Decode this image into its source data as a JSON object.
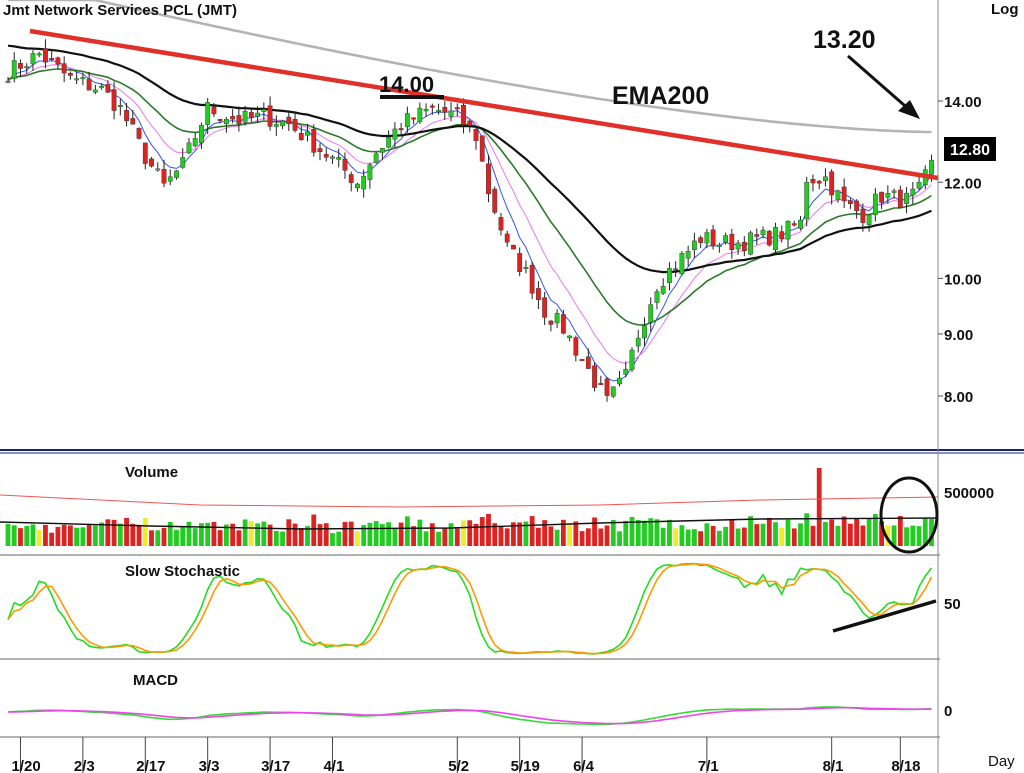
{
  "chart_data": {
    "type": "candlestick",
    "title": "Jmt  Network  Services  PCL  (JMT)",
    "scale_label": "Log",
    "period_label": "Day",
    "x_ticks": [
      "1/20",
      "2/3",
      "2/17",
      "3/3",
      "3/17",
      "4/1",
      "5/2",
      "5/19",
      "6/4",
      "7/1",
      "8/1",
      "8/18"
    ],
    "price_ticks": [
      "14.00",
      "12.00",
      "10.00",
      "9.00",
      "8.00"
    ],
    "price_range": [
      7.3,
      16.5
    ],
    "last_price": "12.80",
    "annotations": {
      "resistance_price": "14.00",
      "target_price": "13.20",
      "ema_label": "EMA200"
    },
    "colors": {
      "up": "#22cc22",
      "down": "#dd2222",
      "trendline": "#e0302a",
      "ema200": "#b4b4b4",
      "sma_black": "#111111",
      "ema_green": "#2a7a2a",
      "ema_blue": "#3355ee",
      "ema_pink": "#ee77ee",
      "stoch_k": "#22dd22",
      "stoch_d": "#ff9900",
      "macd": "#33dd33",
      "signal": "#ee44ee",
      "volume_avg_red": "#ee5555",
      "panel_border": "#1a237e"
    },
    "panels": {
      "volume": {
        "label": "Volume",
        "tick": "500000"
      },
      "stochastic": {
        "label": "Slow  Stochastic",
        "tick": "50"
      },
      "macd": {
        "label": "MACD",
        "tick": "0"
      }
    },
    "price_waypoints": [
      [
        0,
        14.8
      ],
      [
        5,
        15.3
      ],
      [
        10,
        14.6
      ],
      [
        15,
        14.3
      ],
      [
        18,
        13.8
      ],
      [
        22,
        12.6
      ],
      [
        25,
        11.9
      ],
      [
        28,
        12.4
      ],
      [
        32,
        13.8
      ],
      [
        37,
        13.5
      ],
      [
        41,
        13.6
      ],
      [
        45,
        13.4
      ],
      [
        49,
        12.9
      ],
      [
        53,
        12.4
      ],
      [
        56,
        12.0
      ],
      [
        59,
        12.7
      ],
      [
        63,
        13.4
      ],
      [
        68,
        13.8
      ],
      [
        72,
        13.6
      ],
      [
        75,
        13.1
      ],
      [
        77,
        11.8
      ],
      [
        80,
        10.6
      ],
      [
        83,
        10.1
      ],
      [
        86,
        9.4
      ],
      [
        89,
        9.1
      ],
      [
        93,
        8.4
      ],
      [
        96,
        7.9
      ],
      [
        99,
        8.3
      ],
      [
        101,
        9.0
      ],
      [
        104,
        9.9
      ],
      [
        108,
        10.4
      ],
      [
        111,
        10.8
      ],
      [
        114,
        10.7
      ],
      [
        117,
        10.7
      ],
      [
        121,
        10.8
      ],
      [
        124,
        10.9
      ],
      [
        127,
        11.1
      ],
      [
        128,
        12.1
      ],
      [
        131,
        12.1
      ],
      [
        134,
        11.5
      ],
      [
        137,
        11.3
      ],
      [
        140,
        11.7
      ],
      [
        144,
        11.6
      ],
      [
        146,
        11.8
      ],
      [
        148,
        12.4
      ]
    ]
  }
}
